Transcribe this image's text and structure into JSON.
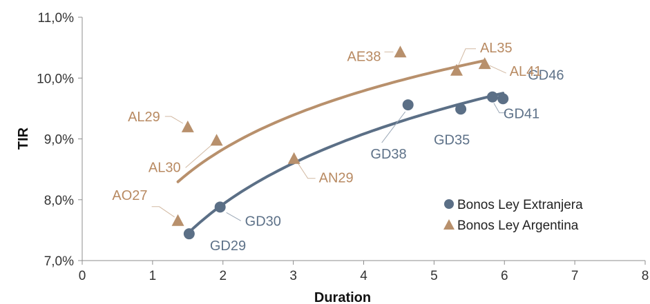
{
  "chart_data": {
    "type": "scatter",
    "xlabel": "Duration",
    "ylabel": "TIR",
    "xlim": [
      0,
      8
    ],
    "ylim": [
      7.0,
      11.0
    ],
    "x_ticks": [
      "0",
      "1",
      "2",
      "3",
      "4",
      "5",
      "6",
      "7",
      "8"
    ],
    "y_ticks": [
      "7,0%",
      "8,0%",
      "9,0%",
      "10,0%",
      "11,0%"
    ],
    "grid": false,
    "legend_position": "bottom-right",
    "series": [
      {
        "name": "Bonos Ley Extranjera",
        "marker": "circle",
        "color": "#5b6f86",
        "trendline": "logarithmic",
        "points": [
          {
            "label": "GD29",
            "x": 1.52,
            "y": 7.44
          },
          {
            "label": "GD30",
            "x": 1.96,
            "y": 7.88
          },
          {
            "label": "GD38",
            "x": 4.63,
            "y": 9.56
          },
          {
            "label": "GD35",
            "x": 5.38,
            "y": 9.49
          },
          {
            "label": "GD41",
            "x": 5.83,
            "y": 9.69
          },
          {
            "label": "GD46",
            "x": 5.98,
            "y": 9.66
          }
        ]
      },
      {
        "name": "Bonos Ley Argentina",
        "marker": "triangle",
        "color": "#b8906c",
        "trendline": "logarithmic",
        "points": [
          {
            "label": "AO27",
            "x": 1.36,
            "y": 7.66
          },
          {
            "label": "AL29",
            "x": 1.5,
            "y": 9.2
          },
          {
            "label": "AL30",
            "x": 1.91,
            "y": 8.98
          },
          {
            "label": "AN29",
            "x": 3.01,
            "y": 8.68
          },
          {
            "label": "AE38",
            "x": 4.52,
            "y": 10.43
          },
          {
            "label": "AL35",
            "x": 5.32,
            "y": 10.13
          },
          {
            "label": "AL41",
            "x": 5.72,
            "y": 10.24
          }
        ]
      }
    ]
  }
}
